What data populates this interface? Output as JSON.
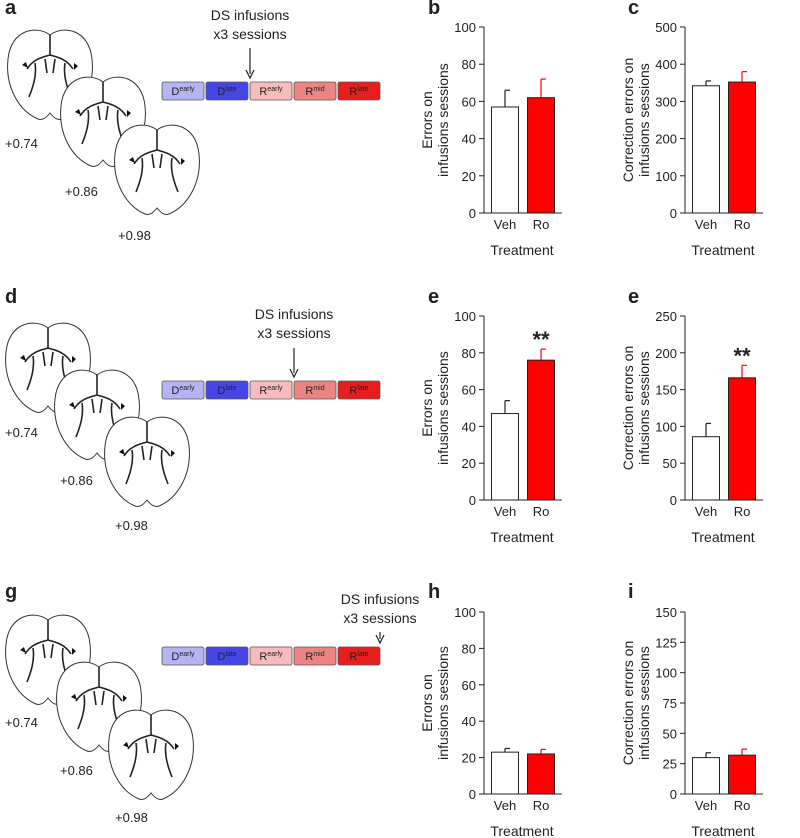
{
  "panels": [
    {
      "letter": "a",
      "sections": [
        "+0.74",
        "+0.86",
        "+0.98"
      ],
      "infusion_label": [
        "DS infusions",
        "x3 sessions"
      ],
      "stages": [
        {
          "base": "D",
          "sup": "early",
          "color": "#b4b4f2"
        },
        {
          "base": "D",
          "sup": "late",
          "color": "#4646e6"
        },
        {
          "base": "R",
          "sup": "early",
          "color": "#f6bcbc"
        },
        {
          "base": "R",
          "sup": "mid",
          "color": "#ec8484"
        },
        {
          "base": "R",
          "sup": "late",
          "color": "#e81e1e"
        }
      ]
    },
    {
      "letter": "d",
      "sections": [
        "+0.74",
        "+0.86",
        "+0.98"
      ],
      "infusion_label": [
        "DS infusions",
        "x3 sessions"
      ],
      "stages": [
        {
          "base": "D",
          "sup": "early",
          "color": "#b4b4f2"
        },
        {
          "base": "D",
          "sup": "late",
          "color": "#4646e6"
        },
        {
          "base": "R",
          "sup": "early",
          "color": "#f6bcbc"
        },
        {
          "base": "R",
          "sup": "mid",
          "color": "#ec8484"
        },
        {
          "base": "R",
          "sup": "late",
          "color": "#e81e1e"
        }
      ]
    },
    {
      "letter": "g",
      "sections": [
        "+0.74",
        "+0.86",
        "+0.98"
      ],
      "infusion_label": [
        "DS infusions",
        "x3 sessions"
      ],
      "stages": [
        {
          "base": "D",
          "sup": "early",
          "color": "#b4b4f2"
        },
        {
          "base": "D",
          "sup": "late",
          "color": "#4646e6"
        },
        {
          "base": "R",
          "sup": "early",
          "color": "#f6bcbc"
        },
        {
          "base": "R",
          "sup": "mid",
          "color": "#ec8484"
        },
        {
          "base": "R",
          "sup": "late",
          "color": "#e81e1e"
        }
      ]
    }
  ],
  "chart_data": [
    {
      "type": "bar",
      "letter": "b",
      "ylabel": [
        "Errors on",
        "infusions sessions"
      ],
      "xlabel": "Treatment",
      "categories": [
        "Veh",
        "Ro"
      ],
      "values": [
        57,
        62
      ],
      "errors": [
        9,
        10
      ],
      "colors": [
        "#ffffff",
        "#ff0000"
      ],
      "ylim": [
        0,
        100
      ],
      "yticks": [
        0,
        20,
        40,
        60,
        80,
        100
      ]
    },
    {
      "type": "bar",
      "letter": "c",
      "ylabel": [
        "Correction errors on",
        "infusions sessions"
      ],
      "xlabel": "Treatment",
      "categories": [
        "Veh",
        "Ro"
      ],
      "values": [
        342,
        352
      ],
      "errors": [
        13,
        28
      ],
      "colors": [
        "#ffffff",
        "#ff0000"
      ],
      "ylim": [
        0,
        500
      ],
      "yticks": [
        0,
        100,
        200,
        300,
        400,
        500
      ]
    },
    {
      "type": "bar",
      "letter": "e",
      "ylabel": [
        "Errors on",
        "infusions sessions"
      ],
      "xlabel": "Treatment",
      "categories": [
        "Veh",
        "Ro"
      ],
      "values": [
        47,
        76
      ],
      "errors": [
        7,
        6
      ],
      "colors": [
        "#ffffff",
        "#ff0000"
      ],
      "ylim": [
        0,
        100
      ],
      "yticks": [
        0,
        20,
        40,
        60,
        80,
        100
      ],
      "annotation": {
        "text": "**",
        "category": "Ro"
      }
    },
    {
      "type": "bar",
      "letter": "e",
      "ylabel": [
        "Correction errors on",
        "infusions sessions"
      ],
      "xlabel": "Treatment",
      "categories": [
        "Veh",
        "Ro"
      ],
      "values": [
        86,
        166
      ],
      "errors": [
        18,
        17
      ],
      "colors": [
        "#ffffff",
        "#ff0000"
      ],
      "ylim": [
        0,
        250
      ],
      "yticks": [
        0,
        50,
        100,
        150,
        200,
        250
      ],
      "annotation": {
        "text": "**",
        "category": "Ro"
      }
    },
    {
      "type": "bar",
      "letter": "h",
      "ylabel": [
        "Errors on",
        "infusions sessions"
      ],
      "xlabel": "Treatment",
      "categories": [
        "Veh",
        "Ro"
      ],
      "values": [
        23,
        22
      ],
      "errors": [
        2,
        2.5
      ],
      "colors": [
        "#ffffff",
        "#ff0000"
      ],
      "ylim": [
        0,
        100
      ],
      "yticks": [
        0,
        20,
        40,
        60,
        80,
        100
      ]
    },
    {
      "type": "bar",
      "letter": "i",
      "ylabel": [
        "Correction errors on",
        "infusions sessions"
      ],
      "xlabel": "Treatment",
      "categories": [
        "Veh",
        "Ro"
      ],
      "values": [
        30,
        32
      ],
      "errors": [
        4,
        5
      ],
      "colors": [
        "#ffffff",
        "#ff0000"
      ],
      "ylim": [
        0,
        150
      ],
      "yticks": [
        0,
        25,
        50,
        75,
        100,
        125,
        150
      ]
    }
  ]
}
